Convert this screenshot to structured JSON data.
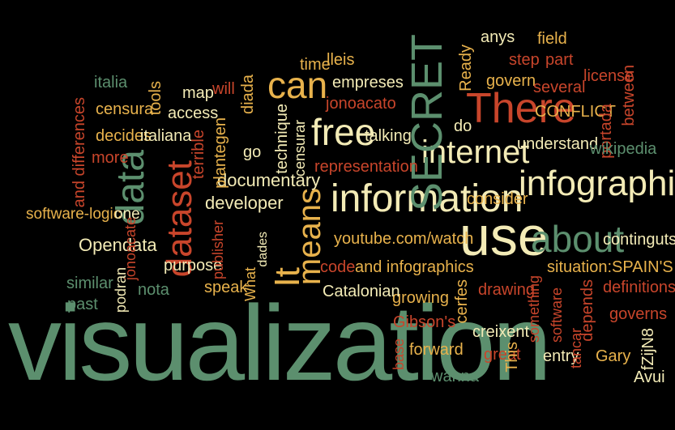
{
  "palette": {
    "green": "#5c8f6e",
    "cream": "#f3ebb6",
    "yellow": "#e8b24c",
    "red": "#c8452b",
    "rust": "#b0532f",
    "tan": "#d6a163"
  },
  "words": [
    "visualization",
    "information",
    "infographics",
    "internet",
    "free",
    "use",
    "about",
    "There",
    "SECRET",
    "can",
    "data",
    "dataset",
    "It",
    "means",
    "documentary",
    "representation",
    "youtube.com/watch",
    "talking",
    "developer",
    "Opendata",
    "software-logic",
    "one",
    "time",
    "lleis",
    "empreses",
    "jonoacato",
    "map",
    "will",
    "access",
    "censura",
    "italia",
    "tools",
    "decides",
    "italiana",
    "terrible",
    "plantegen",
    "go",
    "diada",
    "technique",
    "censurar",
    "Ready",
    "anys",
    "field",
    "step",
    "part",
    "govern",
    "several",
    "license",
    "CONFLICT",
    "between",
    "portada",
    "do",
    "understand",
    "wikipedia",
    "consider",
    "continguts",
    "code",
    "and infographics",
    "situation:SPAIN'S",
    "definitions",
    "governs",
    "drawing",
    "growing",
    "Catalonian",
    "cerfes",
    "something",
    "software",
    "depends",
    "creixent",
    "Gibson's",
    "forward",
    "great",
    "entry",
    "tancar",
    "Gary",
    "fZijN8",
    "Avui",
    "This",
    "wanna",
    "base",
    "purpose",
    "speak",
    "What",
    "dades",
    "publisher",
    "podran",
    "jonoacate",
    "nota",
    "similar",
    "past",
    "and differences",
    "more"
  ]
}
